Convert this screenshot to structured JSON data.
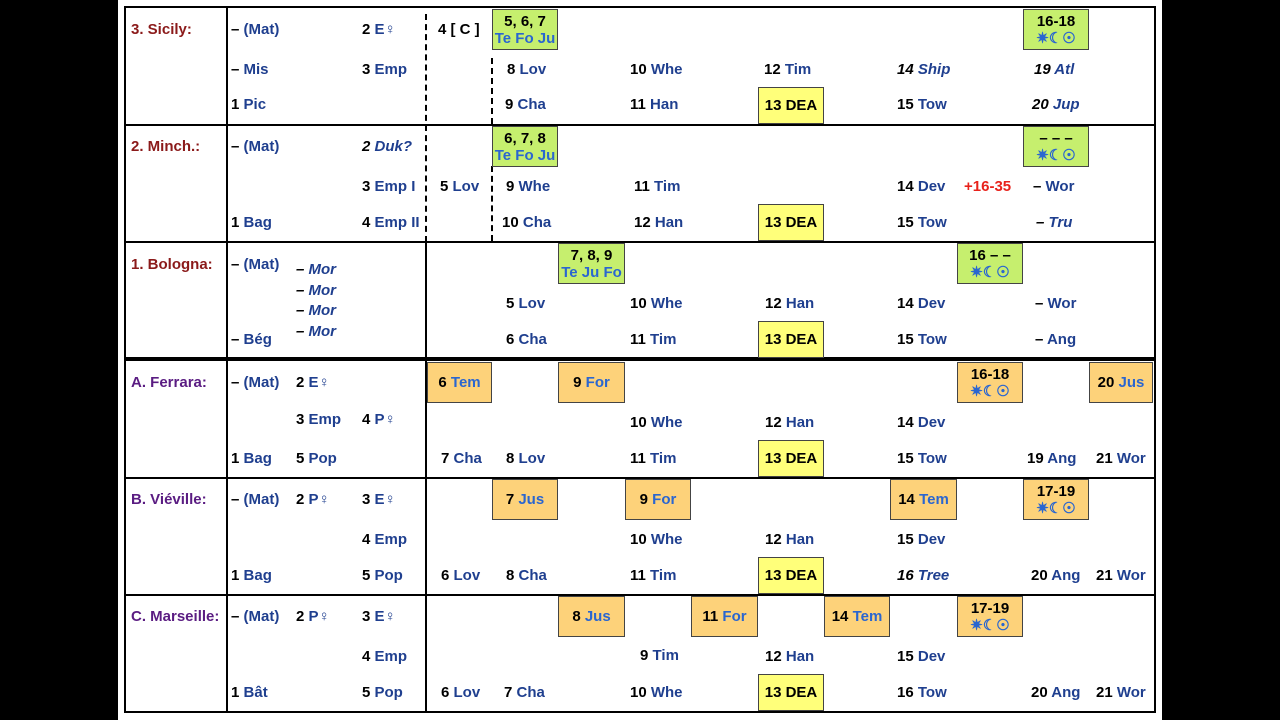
{
  "sections": {
    "sicily": {
      "title": "3. Sicily:",
      "left": [
        "– (Mat)",
        "– Mis",
        "1 Pic",
        "2 E♀",
        "3 Emp",
        "4 [ C ]"
      ],
      "box_a": {
        "l1": "5, 6, 7",
        "l2": "Te Fo Ju"
      },
      "box_b": {
        "l1": "16-18",
        "l2": "✷☾☉"
      },
      "row2": [
        "8 Lov",
        "10 Whe",
        "12 Tim",
        "14 Ship",
        "19 Atl"
      ],
      "row3": [
        "9 Cha",
        "11 Han",
        "13 DEA",
        "15 Tow",
        "20 Jup"
      ]
    },
    "minch": {
      "title": "2. Minch.:",
      "left": [
        "– (Mat)",
        "1 Bag",
        "2 Duk?",
        "3 Emp I",
        "4 Emp II"
      ],
      "box_a": {
        "l1": "6, 7, 8",
        "l2": "Te Fo Ju"
      },
      "box_b": {
        "l1": "– – –",
        "l2": "✷☾☉"
      },
      "row2": [
        "5 Lov",
        "9 Whe",
        "11 Tim",
        "14 Dev",
        "+16-35",
        "– Wor"
      ],
      "row3": [
        "10 Cha",
        "12 Han",
        "13 DEA",
        "15 Tow",
        "– Tru"
      ]
    },
    "bologna": {
      "title": "1. Bologna:",
      "left": [
        "– (Mat)",
        "– Bég",
        "– Mor",
        "– Mor",
        "– Mor",
        "– Mor"
      ],
      "box_a": {
        "l1": "7, 8, 9",
        "l2": "Te Ju Fo"
      },
      "box_b": {
        "l1": "16 – –",
        "l2": "✷☾☉"
      },
      "row2": [
        "5 Lov",
        "10 Whe",
        "12 Han",
        "14 Dev",
        "– Wor"
      ],
      "row3": [
        "6 Cha",
        "11 Tim",
        "13 DEA",
        "15 Tow",
        "– Ang"
      ]
    },
    "ferrara": {
      "title": "A. Ferrara:",
      "left": [
        "– (Mat)",
        "2 E♀",
        "3 Emp",
        "4 P♀",
        "1 Bag",
        "5 Pop"
      ],
      "boxes": [
        "6 Tem",
        "9 For",
        "20 Jus"
      ],
      "box_b": {
        "l1": "16-18",
        "l2": "✷☾☉"
      },
      "row2": [
        "10 Whe",
        "12 Han",
        "14 Dev"
      ],
      "row3": [
        "7 Cha",
        "8 Lov",
        "11 Tim",
        "13 DEA",
        "15 Tow",
        "19 Ang",
        "21 Wor"
      ]
    },
    "vieville": {
      "title": "B. Viéville:",
      "left": [
        "– (Mat)",
        "2 P♀",
        "3 E♀",
        "4 Emp",
        "1 Bag",
        "5 Pop"
      ],
      "boxes": [
        "7 Jus",
        "9 For",
        "14 Tem"
      ],
      "box_b": {
        "l1": "17-19",
        "l2": "✷☾☉"
      },
      "row2": [
        "10 Whe",
        "12 Han",
        "15 Dev"
      ],
      "row3": [
        "6 Lov",
        "8 Cha",
        "11 Tim",
        "13 DEA",
        "16 Tree",
        "20 Ang",
        "21 Wor"
      ]
    },
    "marseille": {
      "title": "C. Marseille:",
      "left": [
        "– (Mat)",
        "2 P♀",
        "3 E♀",
        "4 Emp",
        "1 Bât",
        "5 Pop"
      ],
      "boxes": [
        "8 Jus",
        "11 For",
        "14 Tem"
      ],
      "box_b": {
        "l1": "17-19",
        "l2": "✷☾☉"
      },
      "row2": [
        "9 Tim",
        "12 Han",
        "15 Dev"
      ],
      "row3": [
        "6 Lov",
        "7 Cha",
        "10 Whe",
        "13 DEA",
        "16 Tow",
        "20 Ang",
        "21 Wor"
      ]
    }
  },
  "colors": {
    "title_italian": "#8b1a1a",
    "title_french": "#5a1c82",
    "green_box": "#c6ef6e",
    "yellow_box": "#ffff7a",
    "orange_box": "#fdd27a",
    "extra_count": "#e8221b"
  }
}
